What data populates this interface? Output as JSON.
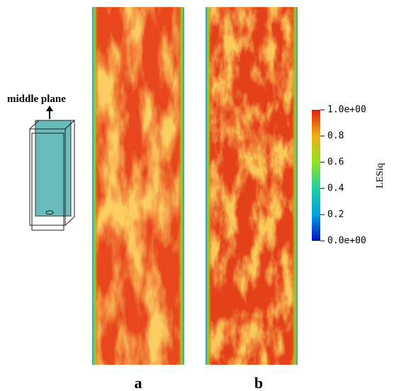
{
  "annotation": "middle plane",
  "panels": [
    {
      "label": "a"
    },
    {
      "label": "b"
    }
  ],
  "colorbar": {
    "title": "LESiq",
    "lim": [
      0,
      1
    ],
    "ticks": [
      {
        "value": 1,
        "label": "1.0e+00"
      },
      0.8,
      0.6,
      0.4,
      0.2,
      {
        "value": 0,
        "label": "0.0e+00"
      }
    ]
  }
}
